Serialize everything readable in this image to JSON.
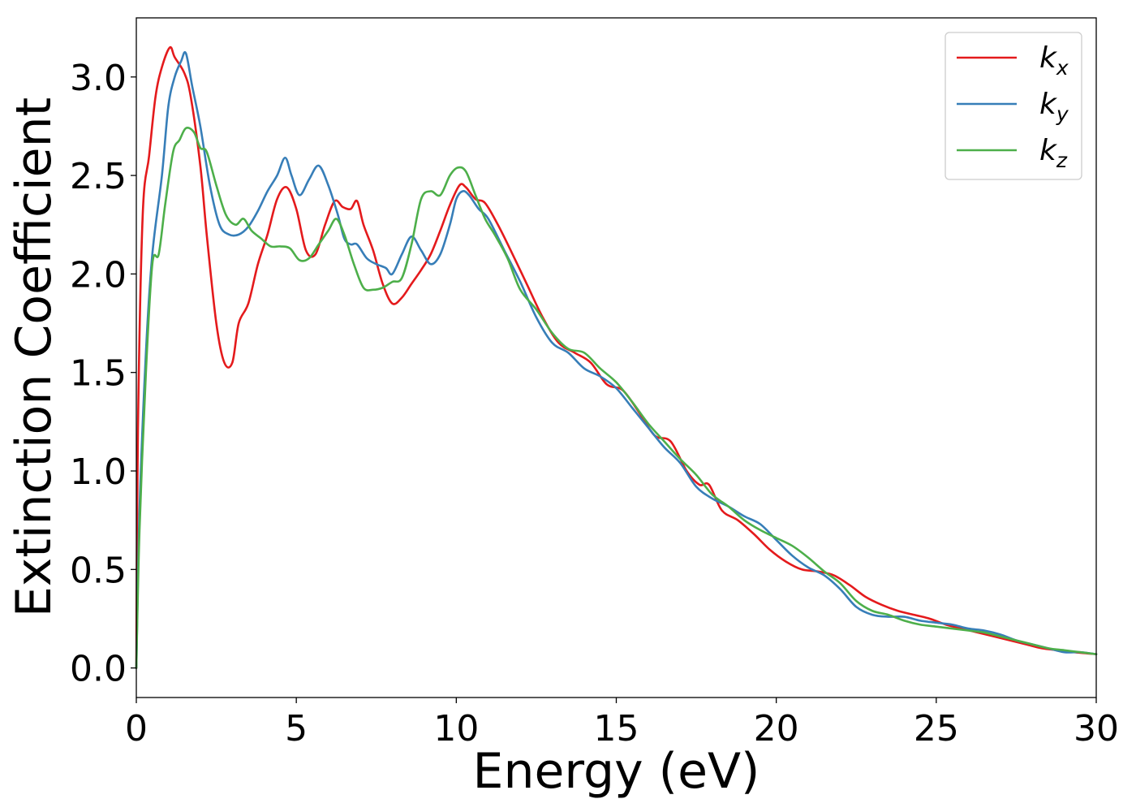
{
  "chart_data": {
    "type": "line",
    "title": "",
    "xlabel": "Energy (eV)",
    "ylabel": "Extinction Coefficient",
    "xlim": [
      0,
      30
    ],
    "ylim": [
      -0.15,
      3.3
    ],
    "xticks": [
      0,
      5,
      10,
      15,
      20,
      25,
      30
    ],
    "xtick_labels": [
      "0",
      "5",
      "10",
      "15",
      "20",
      "25",
      "30"
    ],
    "yticks": [
      0.0,
      0.5,
      1.0,
      1.5,
      2.0,
      2.5,
      3.0
    ],
    "ytick_labels": [
      "0.0",
      "0.5",
      "1.0",
      "1.5",
      "2.0",
      "2.5",
      "3.0"
    ],
    "grid": false,
    "legend_position": "top-right",
    "series": [
      {
        "name": "k_x",
        "label_base": "k",
        "label_sub": "x",
        "color": "#e41a1c",
        "x": [
          0,
          0.05,
          0.2,
          0.4,
          0.6,
          0.8,
          1.05,
          1.2,
          1.5,
          1.7,
          2.0,
          2.2,
          2.5,
          2.75,
          3.0,
          3.2,
          3.5,
          3.8,
          4.1,
          4.4,
          4.7,
          5.0,
          5.3,
          5.6,
          5.9,
          6.2,
          6.45,
          6.7,
          6.9,
          7.1,
          7.4,
          7.7,
          8.0,
          8.3,
          8.6,
          8.9,
          9.2,
          9.5,
          9.8,
          10.1,
          10.3,
          10.6,
          10.9,
          11.3,
          11.7,
          12.2,
          12.7,
          13.2,
          13.7,
          14.2,
          14.7,
          15.2,
          15.7,
          16.2,
          16.7,
          17.2,
          17.6,
          17.9,
          18.3,
          18.8,
          19.3,
          19.8,
          20.3,
          20.8,
          21.3,
          21.8,
          22.3,
          22.8,
          23.3,
          23.8,
          24.3,
          24.8,
          25.3,
          25.8,
          26.3,
          26.8,
          27.3,
          27.8,
          28.3,
          28.8,
          29.3,
          30
        ],
        "y": [
          0.0,
          1.2,
          2.3,
          2.6,
          2.9,
          3.05,
          3.15,
          3.1,
          3.02,
          2.9,
          2.55,
          2.2,
          1.75,
          1.55,
          1.55,
          1.75,
          1.85,
          2.05,
          2.2,
          2.38,
          2.44,
          2.33,
          2.12,
          2.1,
          2.25,
          2.37,
          2.34,
          2.33,
          2.37,
          2.25,
          2.12,
          1.95,
          1.85,
          1.88,
          1.95,
          2.02,
          2.1,
          2.22,
          2.35,
          2.45,
          2.44,
          2.38,
          2.36,
          2.25,
          2.12,
          1.95,
          1.78,
          1.65,
          1.6,
          1.55,
          1.44,
          1.41,
          1.3,
          1.18,
          1.15,
          1.0,
          0.93,
          0.93,
          0.8,
          0.75,
          0.68,
          0.6,
          0.54,
          0.5,
          0.49,
          0.47,
          0.42,
          0.36,
          0.32,
          0.29,
          0.27,
          0.25,
          0.22,
          0.2,
          0.18,
          0.16,
          0.14,
          0.12,
          0.1,
          0.09,
          0.08,
          0.07
        ]
      },
      {
        "name": "k_y",
        "label_base": "k",
        "label_sub": "y",
        "color": "#377eb8",
        "x": [
          0,
          0.1,
          0.3,
          0.5,
          0.8,
          1.0,
          1.2,
          1.4,
          1.55,
          1.75,
          2.0,
          2.3,
          2.6,
          2.9,
          3.2,
          3.5,
          3.8,
          4.1,
          4.4,
          4.65,
          4.85,
          5.1,
          5.4,
          5.7,
          6.0,
          6.3,
          6.5,
          6.7,
          6.9,
          7.2,
          7.5,
          7.8,
          8.0,
          8.3,
          8.6,
          8.9,
          9.2,
          9.5,
          9.8,
          10.0,
          10.2,
          10.4,
          10.7,
          11.0,
          11.5,
          12.0,
          12.5,
          13.0,
          13.5,
          14.0,
          14.5,
          15.0,
          15.5,
          16.0,
          16.5,
          17.0,
          17.5,
          18.0,
          18.5,
          19.0,
          19.5,
          20.0,
          20.5,
          21.0,
          21.5,
          22.0,
          22.5,
          23.0,
          23.5,
          24.0,
          24.5,
          25.0,
          25.5,
          26.0,
          26.5,
          27.0,
          27.5,
          28.0,
          28.5,
          29.0,
          29.5,
          30
        ],
        "y": [
          0.0,
          0.8,
          1.6,
          2.1,
          2.5,
          2.85,
          3.0,
          3.08,
          3.12,
          2.95,
          2.75,
          2.45,
          2.25,
          2.2,
          2.2,
          2.24,
          2.32,
          2.42,
          2.5,
          2.59,
          2.5,
          2.4,
          2.48,
          2.55,
          2.45,
          2.3,
          2.18,
          2.15,
          2.15,
          2.08,
          2.05,
          2.03,
          2.0,
          2.1,
          2.19,
          2.12,
          2.05,
          2.1,
          2.25,
          2.38,
          2.42,
          2.4,
          2.33,
          2.28,
          2.12,
          1.96,
          1.78,
          1.65,
          1.6,
          1.52,
          1.48,
          1.42,
          1.32,
          1.22,
          1.12,
          1.04,
          0.92,
          0.86,
          0.82,
          0.77,
          0.73,
          0.65,
          0.57,
          0.51,
          0.47,
          0.4,
          0.31,
          0.27,
          0.26,
          0.26,
          0.24,
          0.23,
          0.22,
          0.2,
          0.19,
          0.17,
          0.14,
          0.12,
          0.1,
          0.08,
          0.08,
          0.07
        ]
      },
      {
        "name": "k_z",
        "label_base": "k",
        "label_sub": "z",
        "color": "#4daf4a",
        "x": [
          0,
          0.1,
          0.3,
          0.5,
          0.7,
          0.9,
          1.15,
          1.35,
          1.55,
          1.8,
          2.0,
          2.2,
          2.5,
          2.8,
          3.1,
          3.35,
          3.6,
          3.9,
          4.2,
          4.5,
          4.8,
          5.1,
          5.4,
          5.7,
          6.0,
          6.25,
          6.5,
          6.8,
          7.1,
          7.4,
          7.7,
          8.0,
          8.3,
          8.6,
          8.9,
          9.2,
          9.5,
          9.8,
          10.05,
          10.3,
          10.6,
          10.9,
          11.2,
          11.6,
          12.0,
          12.5,
          13.0,
          13.5,
          14.0,
          14.5,
          15.0,
          15.5,
          16.0,
          16.5,
          17.0,
          17.5,
          18.0,
          18.5,
          19.0,
          19.5,
          20.0,
          20.5,
          21.0,
          21.5,
          22.0,
          22.5,
          23.0,
          23.5,
          24.0,
          24.5,
          25.0,
          25.5,
          26.0,
          26.5,
          27.0,
          27.5,
          28.0,
          28.5,
          29.0,
          29.5,
          30
        ],
        "y": [
          0.0,
          0.7,
          1.5,
          2.05,
          2.1,
          2.35,
          2.62,
          2.68,
          2.74,
          2.72,
          2.64,
          2.62,
          2.45,
          2.3,
          2.25,
          2.28,
          2.22,
          2.18,
          2.14,
          2.14,
          2.13,
          2.07,
          2.08,
          2.15,
          2.22,
          2.28,
          2.2,
          2.05,
          1.93,
          1.92,
          1.93,
          1.96,
          1.98,
          2.15,
          2.38,
          2.42,
          2.4,
          2.5,
          2.54,
          2.52,
          2.4,
          2.28,
          2.2,
          2.08,
          1.92,
          1.82,
          1.7,
          1.62,
          1.6,
          1.52,
          1.45,
          1.35,
          1.24,
          1.15,
          1.06,
          0.98,
          0.88,
          0.82,
          0.75,
          0.7,
          0.66,
          0.62,
          0.56,
          0.49,
          0.43,
          0.34,
          0.29,
          0.27,
          0.24,
          0.22,
          0.21,
          0.2,
          0.19,
          0.18,
          0.16,
          0.14,
          0.12,
          0.1,
          0.09,
          0.08,
          0.07
        ]
      }
    ]
  }
}
